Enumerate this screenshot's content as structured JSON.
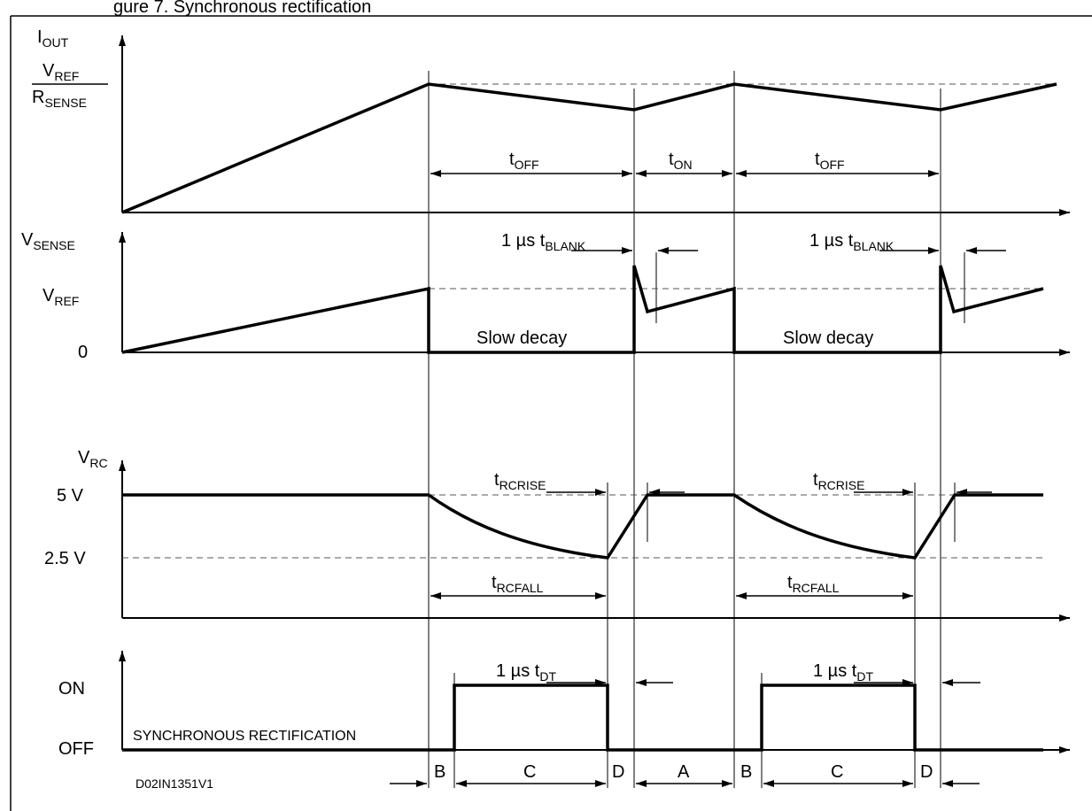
{
  "figure_title_fragment": "gure 7.    Synchronous rectification",
  "figure_code": "D02IN1351V1",
  "panels": {
    "iout": {
      "y_axis": "I",
      "y_axis_sub": "OUT",
      "level_num": "V",
      "level_num_sub": "REF",
      "level_den": "R",
      "level_den_sub": "SENSE",
      "dims": [
        {
          "main": "t",
          "sub": "OFF"
        },
        {
          "main": "t",
          "sub": "ON"
        },
        {
          "main": "t",
          "sub": "OFF"
        }
      ]
    },
    "vsense": {
      "y_axis": "V",
      "y_axis_sub": "SENSE",
      "level_ref": "V",
      "level_ref_sub": "REF",
      "level_zero": "0",
      "phase_text": "Slow decay",
      "blank_main": "1 µs t",
      "blank_sub": "BLANK"
    },
    "vrc": {
      "y_axis": "V",
      "y_axis_sub": "RC",
      "level_high": "5 V",
      "level_low": "2.5 V",
      "rise_main": "t",
      "rise_sub": "RCRISE",
      "fall_main": "t",
      "fall_sub": "RCFALL"
    },
    "sync": {
      "level_on": "ON",
      "level_off": "OFF",
      "caption": "SYNCHRONOUS RECTIFICATION",
      "dt_main": "1 µs t",
      "dt_sub": "DT"
    }
  },
  "phases": [
    "B",
    "C",
    "D",
    "A",
    "B",
    "C",
    "D"
  ]
}
